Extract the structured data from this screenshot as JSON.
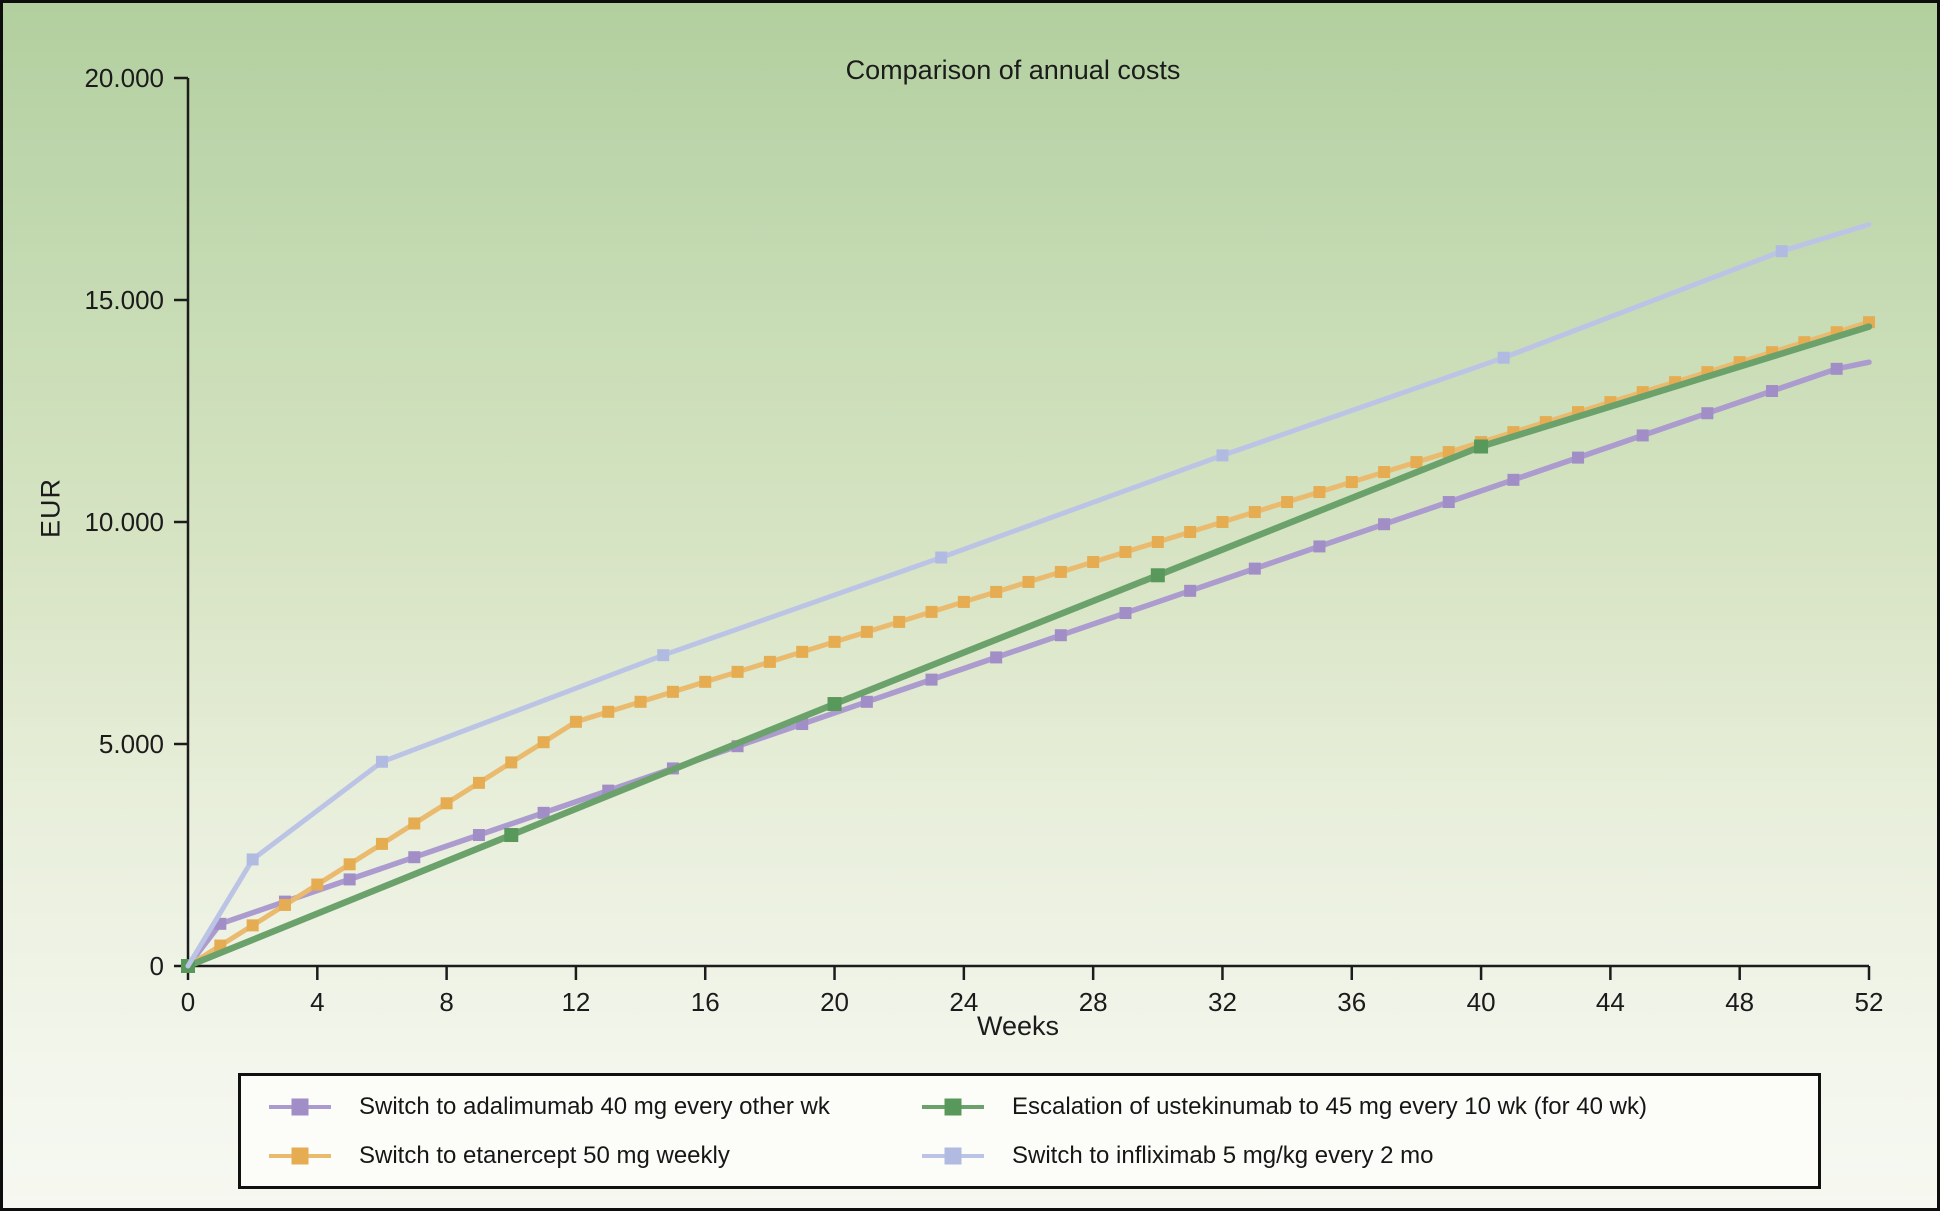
{
  "figure": {
    "title": "Comparison of annual costs",
    "xlabel": "Weeks",
    "ylabel": "EUR"
  },
  "chart_data": {
    "type": "line",
    "title": "Comparison of annual costs",
    "xlabel": "Weeks",
    "ylabel": "EUR",
    "xlim": [
      0,
      52
    ],
    "ylim": [
      0,
      20000
    ],
    "x_ticks": [
      0,
      4,
      8,
      12,
      16,
      20,
      24,
      28,
      32,
      36,
      40,
      44,
      48,
      52
    ],
    "y_ticks": [
      {
        "value": 0,
        "label": "0"
      },
      {
        "value": 5000,
        "label": "5.000"
      },
      {
        "value": 10000,
        "label": "10.000"
      },
      {
        "value": 15000,
        "label": "15.000"
      },
      {
        "value": 20000,
        "label": "20.000"
      }
    ],
    "grid": false,
    "legend_position": "bottom",
    "axis_color": "#1c1c1c",
    "background_top_color": "#b2cf9e",
    "background_bottom_color": "#f6f8f1",
    "series": [
      {
        "name": "Switch to adalimumab 40 mg every other wk",
        "color": "#ab9bce",
        "marker_color": "#a18ec6",
        "line_width": 5.5,
        "marker_size": 12,
        "points": [
          [
            0,
            0
          ],
          [
            1,
            950
          ],
          [
            3,
            1450
          ],
          [
            5,
            1950
          ],
          [
            7,
            2450
          ],
          [
            9,
            2950
          ],
          [
            11,
            3450
          ],
          [
            13,
            3950
          ],
          [
            15,
            4450
          ],
          [
            17,
            4950
          ],
          [
            19,
            5450
          ],
          [
            21,
            5950
          ],
          [
            23,
            6450
          ],
          [
            25,
            6950
          ],
          [
            27,
            7450
          ],
          [
            29,
            7950
          ],
          [
            31,
            8450
          ],
          [
            33,
            8950
          ],
          [
            35,
            9450
          ],
          [
            37,
            9950
          ],
          [
            39,
            10450
          ],
          [
            41,
            10950
          ],
          [
            43,
            11450
          ],
          [
            45,
            11950
          ],
          [
            47,
            12450
          ],
          [
            49,
            12950
          ],
          [
            51,
            13450
          ],
          [
            52,
            13600
          ]
        ],
        "marker_weeks": [
          1,
          3,
          5,
          7,
          9,
          11,
          13,
          15,
          17,
          19,
          21,
          23,
          25,
          27,
          29,
          31,
          33,
          35,
          37,
          39,
          41,
          43,
          45,
          47,
          49,
          51
        ]
      },
      {
        "name": "Switch to etanercept 50 mg weekly",
        "color": "#eabb6e",
        "marker_color": "#e5ac52",
        "line_width": 5,
        "marker_size": 12,
        "points": [
          [
            0,
            0
          ],
          [
            1,
            460
          ],
          [
            2,
            915
          ],
          [
            3,
            1375
          ],
          [
            4,
            1835
          ],
          [
            5,
            2290
          ],
          [
            6,
            2750
          ],
          [
            7,
            3210
          ],
          [
            8,
            3665
          ],
          [
            9,
            4125
          ],
          [
            10,
            4585
          ],
          [
            11,
            5040
          ],
          [
            12,
            5500
          ],
          [
            13,
            5725
          ],
          [
            14,
            5950
          ],
          [
            15,
            6175
          ],
          [
            16,
            6400
          ],
          [
            17,
            6625
          ],
          [
            18,
            6850
          ],
          [
            19,
            7075
          ],
          [
            20,
            7300
          ],
          [
            21,
            7525
          ],
          [
            22,
            7750
          ],
          [
            23,
            7975
          ],
          [
            24,
            8200
          ],
          [
            25,
            8425
          ],
          [
            26,
            8650
          ],
          [
            27,
            8875
          ],
          [
            28,
            9100
          ],
          [
            29,
            9325
          ],
          [
            30,
            9550
          ],
          [
            31,
            9775
          ],
          [
            32,
            10000
          ],
          [
            33,
            10225
          ],
          [
            34,
            10450
          ],
          [
            35,
            10675
          ],
          [
            36,
            10900
          ],
          [
            37,
            11125
          ],
          [
            38,
            11350
          ],
          [
            39,
            11575
          ],
          [
            40,
            11800
          ],
          [
            41,
            12025
          ],
          [
            42,
            12250
          ],
          [
            43,
            12475
          ],
          [
            44,
            12700
          ],
          [
            45,
            12925
          ],
          [
            46,
            13150
          ],
          [
            47,
            13375
          ],
          [
            48,
            13600
          ],
          [
            49,
            13825
          ],
          [
            50,
            14050
          ],
          [
            51,
            14275
          ],
          [
            52,
            14500
          ]
        ],
        "marker_weeks": [
          1,
          2,
          3,
          4,
          5,
          6,
          7,
          8,
          9,
          10,
          11,
          12,
          13,
          14,
          15,
          16,
          17,
          18,
          19,
          20,
          21,
          22,
          23,
          24,
          25,
          26,
          27,
          28,
          29,
          30,
          31,
          32,
          33,
          34,
          35,
          36,
          37,
          38,
          39,
          40,
          41,
          42,
          43,
          44,
          45,
          46,
          47,
          48,
          49,
          50,
          51,
          52
        ]
      },
      {
        "name": "Escalation of ustekinumab to 45 mg every 10 wk (for 40 wk)",
        "color": "#6ba26b",
        "marker_color": "#58985a",
        "line_width": 6.5,
        "marker_size": 14,
        "points": [
          [
            0,
            0
          ],
          [
            10,
            2950
          ],
          [
            20,
            5900
          ],
          [
            30,
            8800
          ],
          [
            40,
            11700
          ],
          [
            52,
            14400
          ]
        ],
        "marker_weeks": [
          0,
          10,
          20,
          30,
          40
        ]
      },
      {
        "name": "Switch to infliximab 5 mg/kg every 2 mo",
        "color": "#bcc4e6",
        "marker_color": "#b1bbe2",
        "line_width": 5,
        "marker_size": 12,
        "points": [
          [
            0,
            0
          ],
          [
            2,
            2400
          ],
          [
            6,
            4600
          ],
          [
            14.7,
            7000
          ],
          [
            23.3,
            9200
          ],
          [
            32,
            11500
          ],
          [
            40.7,
            13700
          ],
          [
            49.3,
            16100
          ],
          [
            52,
            16700
          ]
        ],
        "marker_weeks": [
          2,
          6,
          14.7,
          23.3,
          32,
          40.7,
          49.3
        ]
      }
    ]
  },
  "legend": {
    "items": [
      {
        "label": "Switch to adalimumab 40 mg every other wk",
        "series_index": 0
      },
      {
        "label": "Escalation of ustekinumab to 45 mg every 10 wk (for 40 wk)",
        "series_index": 2
      },
      {
        "label": "Switch to etanercept 50 mg weekly",
        "series_index": 1
      },
      {
        "label": "Switch to infliximab 5 mg/kg every 2 mo",
        "series_index": 3
      }
    ]
  }
}
